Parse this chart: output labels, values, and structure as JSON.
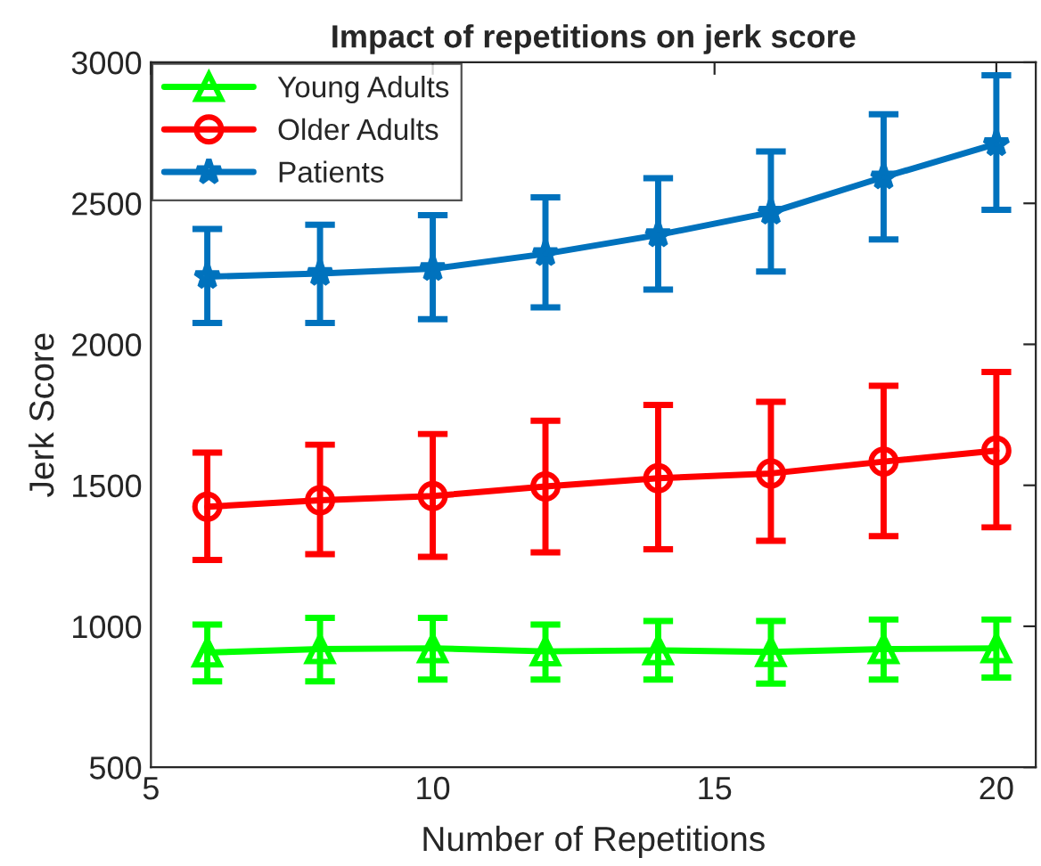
{
  "chart_data": {
    "type": "line",
    "title": "Impact of repetitions on jerk score",
    "xlabel": "Number of Repetitions",
    "ylabel": "Jerk Score",
    "x": [
      6,
      8,
      10,
      12,
      14,
      16,
      18,
      20
    ],
    "series": [
      {
        "name": "Young Adults",
        "color": "#00ff00",
        "marker": "triangle",
        "values": [
          907,
          919,
          922,
          911,
          915,
          909,
          919,
          922
        ],
        "errors": [
          [
            805,
            1006
          ],
          [
            805,
            1030
          ],
          [
            811,
            1030
          ],
          [
            811,
            1006
          ],
          [
            811,
            1019
          ],
          [
            797,
            1019
          ],
          [
            811,
            1024
          ],
          [
            818,
            1024
          ]
        ]
      },
      {
        "name": "Older Adults",
        "color": "#ff0000",
        "marker": "circle",
        "values": [
          1424,
          1447,
          1462,
          1496,
          1525,
          1542,
          1584,
          1623
        ],
        "errors": [
          [
            1235,
            1616
          ],
          [
            1256,
            1644
          ],
          [
            1246,
            1682
          ],
          [
            1262,
            1729
          ],
          [
            1273,
            1785
          ],
          [
            1303,
            1796
          ],
          [
            1320,
            1853
          ],
          [
            1351,
            1902
          ]
        ]
      },
      {
        "name": "Patients",
        "color": "#0072bd",
        "marker": "star",
        "values": [
          2240,
          2251,
          2268,
          2321,
          2388,
          2468,
          2593,
          2711
        ],
        "errors": [
          [
            2076,
            2409
          ],
          [
            2076,
            2424
          ],
          [
            2089,
            2458
          ],
          [
            2131,
            2521
          ],
          [
            2194,
            2589
          ],
          [
            2258,
            2684
          ],
          [
            2372,
            2816
          ],
          [
            2477,
            2954
          ]
        ]
      }
    ],
    "xlim": [
      5,
      20.7
    ],
    "xticks": [
      5,
      10,
      15,
      20
    ],
    "ylim": [
      500,
      3000
    ],
    "yticks": [
      500,
      1000,
      1500,
      2000,
      2500,
      3000
    ],
    "grid": false,
    "legend": "top left",
    "line_style": "solid"
  }
}
